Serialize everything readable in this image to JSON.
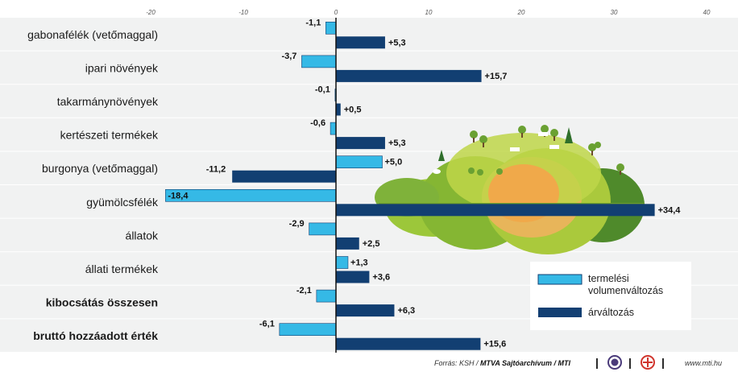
{
  "chart_data": {
    "type": "bar",
    "orientation": "horizontal",
    "categories": [
      "gabonafélék (vetőmaggal)",
      "ipari növények",
      "takarmánynövények",
      "kertészeti termékek",
      "burgonya (vetőmaggal)",
      "gyümölcsfélék",
      "állatok",
      "állati termékek",
      "kibocsátás összesen",
      "bruttó hozzáadott érték"
    ],
    "bold_categories": [
      "kibocsátás összesen",
      "bruttó hozzáadott érték"
    ],
    "series": [
      {
        "name": "termelési volumenváltozás",
        "color": "#35b9e6",
        "values": [
          -1.1,
          -3.7,
          -0.1,
          -0.6,
          5.0,
          -18.4,
          -2.9,
          1.3,
          -2.1,
          -6.1
        ],
        "labels": [
          "-1,1",
          "-3,7",
          "-0,1",
          "-0,6",
          "+5,0",
          "-18,4",
          "-2,9",
          "+1,3",
          "-2,1",
          "-6,1"
        ]
      },
      {
        "name": "árváltozás",
        "color": "#123f72",
        "values": [
          5.3,
          15.7,
          0.5,
          5.3,
          -11.2,
          34.4,
          2.5,
          3.6,
          6.3,
          15.6
        ],
        "labels": [
          "+5,3",
          "+15,7",
          "+0,5",
          "+5,3",
          "-11,2",
          "+34,4",
          "+2,5",
          "+3,6",
          "+6,3",
          "+15,6"
        ]
      }
    ],
    "xlim": [
      -20,
      40
    ],
    "xticks": [
      -20,
      -10,
      0,
      10,
      20,
      30,
      40
    ],
    "xtick_labels": [
      "-20",
      "-10",
      "0",
      "10",
      "20",
      "30",
      "40"
    ],
    "legend_position": "bottom-right",
    "grid": false
  },
  "legend": {
    "volume_line1": "termelési",
    "volume_line2": "volumenváltozás",
    "price": "árváltozás"
  },
  "footer": {
    "source": "Forrás: KSH / ",
    "archive": "MTVA Sajtóarchívum / MTI",
    "sep": "|",
    "website": "www.mti.hu"
  }
}
